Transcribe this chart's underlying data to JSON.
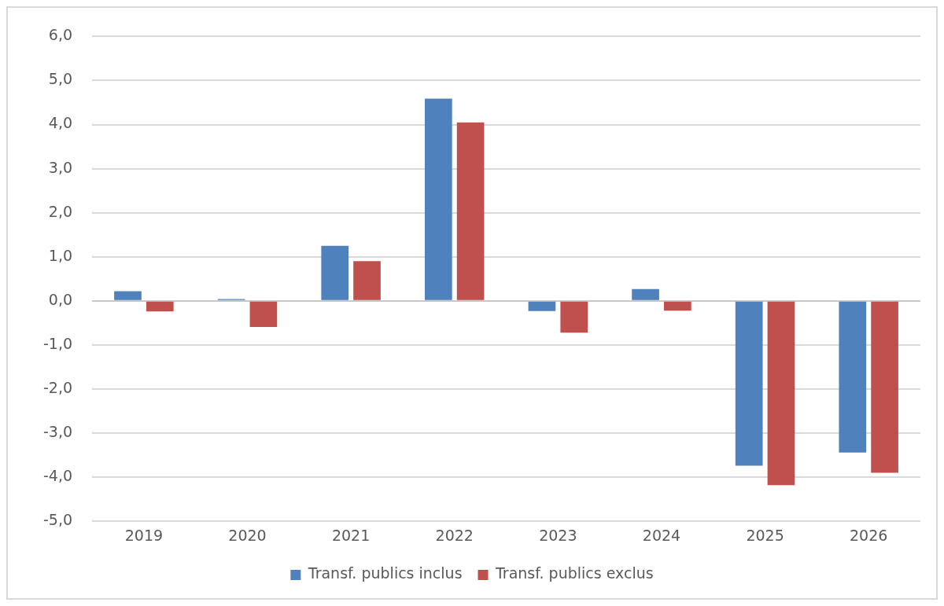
{
  "chart_data": {
    "type": "bar",
    "categories": [
      "2019",
      "2020",
      "2021",
      "2022",
      "2023",
      "2024",
      "2025",
      "2026"
    ],
    "series": [
      {
        "name": "Transf. publics inclus",
        "color": "#4f81bd",
        "values": [
          0.22,
          0.04,
          1.25,
          4.59,
          -0.23,
          0.27,
          -3.74,
          -3.44
        ]
      },
      {
        "name": "Transf. publics exclus",
        "color": "#c0504d",
        "values": [
          -0.24,
          -0.59,
          0.9,
          4.05,
          -0.72,
          -0.22,
          -4.18,
          -3.9
        ]
      }
    ],
    "ylim": [
      -5,
      6
    ],
    "yticks": [
      {
        "value": -5,
        "label": "-5,0"
      },
      {
        "value": -4,
        "label": "-4,0"
      },
      {
        "value": -3,
        "label": "-3,0"
      },
      {
        "value": -2,
        "label": "-2,0"
      },
      {
        "value": -1,
        "label": "-1,0"
      },
      {
        "value": 0,
        "label": "0,0"
      },
      {
        "value": 1,
        "label": "1,0"
      },
      {
        "value": 2,
        "label": "2,0"
      },
      {
        "value": 3,
        "label": "3,0"
      },
      {
        "value": 4,
        "label": "4,0"
      },
      {
        "value": 5,
        "label": "5,0"
      },
      {
        "value": 6,
        "label": "6,0"
      }
    ],
    "grid": "y",
    "legend": "bottom"
  }
}
